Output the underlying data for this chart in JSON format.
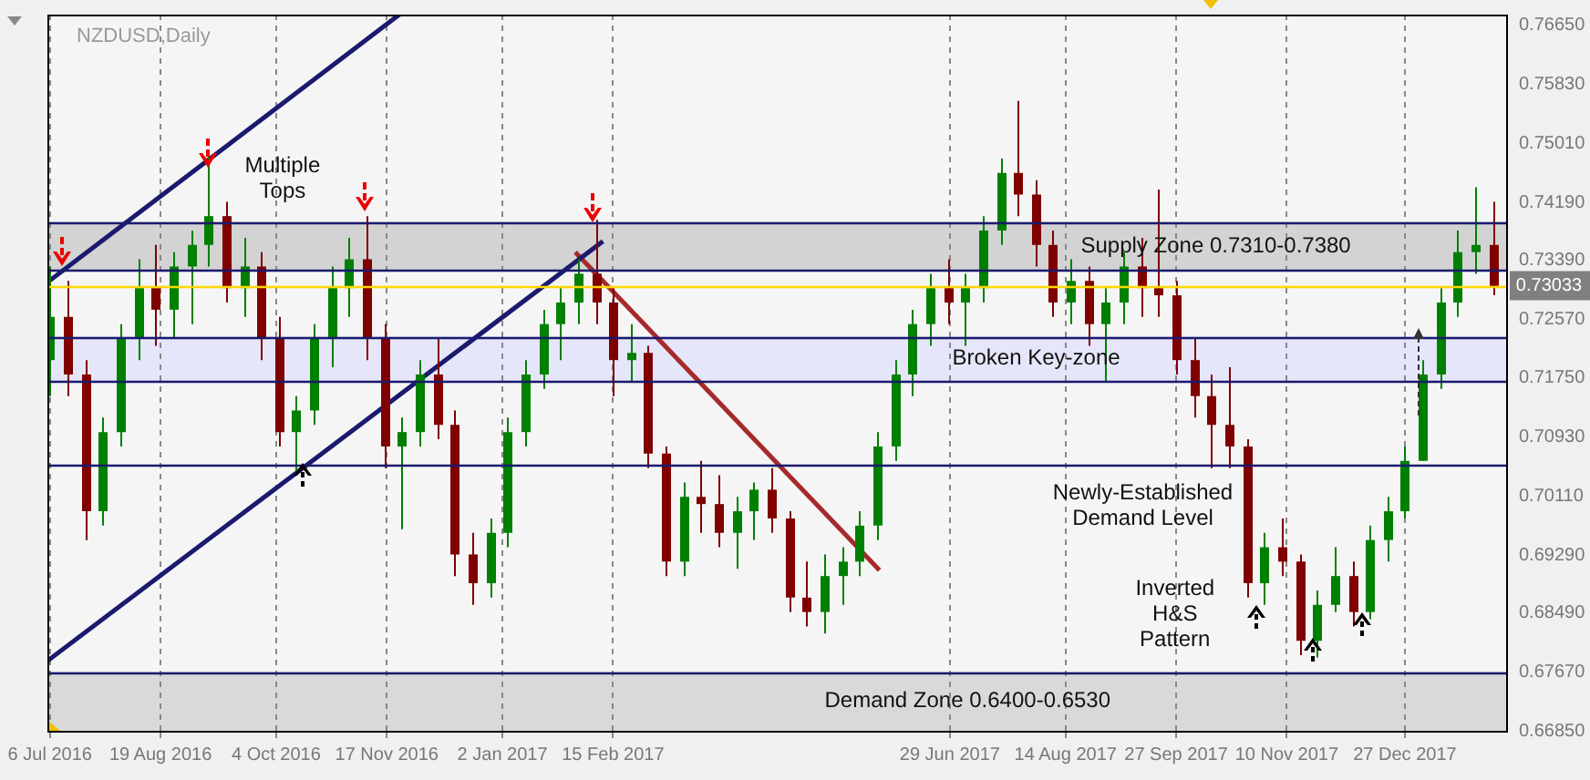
{
  "chart_data": {
    "type": "candlestick",
    "title": "NZDUSD,Daily",
    "x": [
      "2016-07-06",
      "2016-07-13",
      "2016-07-20",
      "2016-07-27",
      "2016-08-03",
      "2016-08-10",
      "2016-08-17",
      "2016-08-24",
      "2016-08-31",
      "2016-09-07",
      "2016-09-14",
      "2016-09-21",
      "2016-09-28",
      "2016-10-05",
      "2016-10-12",
      "2016-10-19",
      "2016-10-26",
      "2016-11-02",
      "2016-11-09",
      "2016-11-16",
      "2016-11-23",
      "2016-11-30",
      "2016-12-07",
      "2016-12-14",
      "2016-12-21",
      "2016-12-28",
      "2017-01-04",
      "2017-01-11",
      "2017-01-18",
      "2017-01-25",
      "2017-02-01",
      "2017-02-08",
      "2017-02-15",
      "2017-02-22",
      "2017-03-01",
      "2017-03-08",
      "2017-03-15",
      "2017-03-22",
      "2017-03-29",
      "2017-04-05",
      "2017-04-12",
      "2017-04-19",
      "2017-04-26",
      "2017-05-03",
      "2017-05-10",
      "2017-05-17",
      "2017-05-24",
      "2017-05-31",
      "2017-06-07",
      "2017-06-14",
      "2017-06-21",
      "2017-06-28",
      "2017-07-05",
      "2017-07-12",
      "2017-07-19",
      "2017-07-26",
      "2017-08-02",
      "2017-08-09",
      "2017-08-16",
      "2017-08-23",
      "2017-08-30",
      "2017-09-06",
      "2017-09-13",
      "2017-09-20",
      "2017-09-27",
      "2017-10-04",
      "2017-10-11",
      "2017-10-18",
      "2017-10-25",
      "2017-11-01",
      "2017-11-08",
      "2017-11-15",
      "2017-11-22",
      "2017-11-29",
      "2017-12-06",
      "2017-12-13",
      "2017-12-20",
      "2017-12-27",
      "2018-01-03",
      "2018-01-10",
      "2018-01-17",
      "2018-01-24",
      "2018-01-31"
    ],
    "ohlc": [
      [
        0.72,
        0.733,
        0.715,
        0.726
      ],
      [
        0.726,
        0.731,
        0.715,
        0.718
      ],
      [
        0.718,
        0.72,
        0.695,
        0.699
      ],
      [
        0.699,
        0.712,
        0.697,
        0.71
      ],
      [
        0.71,
        0.725,
        0.708,
        0.723
      ],
      [
        0.723,
        0.734,
        0.72,
        0.73
      ],
      [
        0.73,
        0.736,
        0.722,
        0.727
      ],
      [
        0.727,
        0.735,
        0.723,
        0.733
      ],
      [
        0.733,
        0.738,
        0.725,
        0.736
      ],
      [
        0.736,
        0.7485,
        0.733,
        0.74
      ],
      [
        0.74,
        0.742,
        0.728,
        0.73
      ],
      [
        0.73,
        0.737,
        0.726,
        0.733
      ],
      [
        0.733,
        0.735,
        0.72,
        0.723
      ],
      [
        0.723,
        0.726,
        0.708,
        0.71
      ],
      [
        0.71,
        0.715,
        0.7045,
        0.713
      ],
      [
        0.713,
        0.725,
        0.711,
        0.723
      ],
      [
        0.723,
        0.733,
        0.719,
        0.73
      ],
      [
        0.73,
        0.737,
        0.726,
        0.734
      ],
      [
        0.734,
        0.74,
        0.72,
        0.723
      ],
      [
        0.723,
        0.725,
        0.705,
        0.708
      ],
      [
        0.708,
        0.712,
        0.6965,
        0.71
      ],
      [
        0.71,
        0.72,
        0.708,
        0.718
      ],
      [
        0.718,
        0.723,
        0.709,
        0.711
      ],
      [
        0.711,
        0.713,
        0.69,
        0.693
      ],
      [
        0.693,
        0.696,
        0.686,
        0.689
      ],
      [
        0.689,
        0.698,
        0.687,
        0.696
      ],
      [
        0.696,
        0.712,
        0.694,
        0.71
      ],
      [
        0.71,
        0.72,
        0.708,
        0.718
      ],
      [
        0.718,
        0.727,
        0.716,
        0.725
      ],
      [
        0.725,
        0.73,
        0.72,
        0.728
      ],
      [
        0.728,
        0.734,
        0.725,
        0.732
      ],
      [
        0.732,
        0.7395,
        0.725,
        0.728
      ],
      [
        0.728,
        0.73,
        0.715,
        0.72
      ],
      [
        0.72,
        0.725,
        0.717,
        0.721
      ],
      [
        0.721,
        0.722,
        0.705,
        0.707
      ],
      [
        0.707,
        0.708,
        0.69,
        0.692
      ],
      [
        0.692,
        0.703,
        0.69,
        0.701
      ],
      [
        0.701,
        0.706,
        0.696,
        0.7
      ],
      [
        0.7,
        0.704,
        0.694,
        0.696
      ],
      [
        0.696,
        0.701,
        0.691,
        0.699
      ],
      [
        0.699,
        0.703,
        0.695,
        0.702
      ],
      [
        0.702,
        0.705,
        0.696,
        0.698
      ],
      [
        0.698,
        0.699,
        0.685,
        0.687
      ],
      [
        0.687,
        0.692,
        0.683,
        0.685
      ],
      [
        0.685,
        0.693,
        0.682,
        0.69
      ],
      [
        0.69,
        0.694,
        0.686,
        0.692
      ],
      [
        0.692,
        0.699,
        0.69,
        0.697
      ],
      [
        0.697,
        0.71,
        0.695,
        0.708
      ],
      [
        0.708,
        0.72,
        0.706,
        0.718
      ],
      [
        0.718,
        0.727,
        0.715,
        0.725
      ],
      [
        0.725,
        0.732,
        0.722,
        0.73
      ],
      [
        0.73,
        0.734,
        0.725,
        0.728
      ],
      [
        0.728,
        0.732,
        0.722,
        0.73
      ],
      [
        0.73,
        0.74,
        0.728,
        0.738
      ],
      [
        0.738,
        0.748,
        0.736,
        0.746
      ],
      [
        0.746,
        0.756,
        0.74,
        0.743
      ],
      [
        0.743,
        0.745,
        0.733,
        0.736
      ],
      [
        0.736,
        0.738,
        0.726,
        0.728
      ],
      [
        0.728,
        0.734,
        0.725,
        0.731
      ],
      [
        0.731,
        0.733,
        0.722,
        0.725
      ],
      [
        0.725,
        0.73,
        0.717,
        0.728
      ],
      [
        0.728,
        0.735,
        0.725,
        0.733
      ],
      [
        0.733,
        0.737,
        0.726,
        0.73
      ],
      [
        0.73,
        0.7437,
        0.726,
        0.729
      ],
      [
        0.729,
        0.731,
        0.718,
        0.72
      ],
      [
        0.72,
        0.723,
        0.712,
        0.715
      ],
      [
        0.715,
        0.718,
        0.705,
        0.711
      ],
      [
        0.711,
        0.719,
        0.705,
        0.708
      ],
      [
        0.708,
        0.709,
        0.687,
        0.689
      ],
      [
        0.689,
        0.696,
        0.686,
        0.694
      ],
      [
        0.694,
        0.698,
        0.69,
        0.692
      ],
      [
        0.692,
        0.693,
        0.679,
        0.681
      ],
      [
        0.681,
        0.688,
        0.6787,
        0.686
      ],
      [
        0.686,
        0.694,
        0.685,
        0.69
      ],
      [
        0.69,
        0.692,
        0.683,
        0.685
      ],
      [
        0.685,
        0.697,
        0.684,
        0.695
      ],
      [
        0.695,
        0.701,
        0.692,
        0.699
      ],
      [
        0.699,
        0.708,
        0.698,
        0.706
      ],
      [
        0.706,
        0.72,
        0.706,
        0.718
      ],
      [
        0.718,
        0.73,
        0.716,
        0.728
      ],
      [
        0.728,
        0.738,
        0.726,
        0.735
      ],
      [
        0.735,
        0.744,
        0.732,
        0.736
      ],
      [
        0.736,
        0.742,
        0.729,
        0.7303
      ]
    ],
    "colors": [
      "#008000",
      "#800000",
      "#800000",
      "#008000",
      "#008000",
      "#008000",
      "#800000",
      "#008000",
      "#008000",
      "#008000",
      "#800000",
      "#008000",
      "#800000",
      "#800000",
      "#008000",
      "#008000",
      "#008000",
      "#008000",
      "#800000",
      "#800000",
      "#008000",
      "#008000",
      "#800000",
      "#800000",
      "#800000",
      "#008000",
      "#008000",
      "#008000",
      "#008000",
      "#008000",
      "#008000",
      "#800000",
      "#800000",
      "#008000",
      "#800000",
      "#800000",
      "#008000",
      "#800000",
      "#800000",
      "#008000",
      "#008000",
      "#800000",
      "#800000",
      "#800000",
      "#008000",
      "#008000",
      "#008000",
      "#008000",
      "#008000",
      "#008000",
      "#008000",
      "#800000",
      "#008000",
      "#008000",
      "#008000",
      "#800000",
      "#800000",
      "#800000",
      "#008000",
      "#800000",
      "#008000",
      "#008000",
      "#800000",
      "#800000",
      "#800000",
      "#800000",
      "#800000",
      "#800000",
      "#800000",
      "#008000",
      "#800000",
      "#800000",
      "#008000",
      "#008000",
      "#800000",
      "#008000",
      "#008000",
      "#008000",
      "#008000",
      "#008000",
      "#008000",
      "#008000",
      "#800000"
    ],
    "series": [
      {
        "type": "line",
        "color": "#1a1a6e",
        "x": [
          "2016-07-05",
          "2016-11-22"
        ],
        "values": [
          0.7308,
          0.768
        ]
      },
      {
        "type": "line",
        "color": "#1a1a6e",
        "x": [
          "2016-07-05",
          "2017-02-11"
        ],
        "values": [
          0.6782,
          0.7365
        ]
      },
      {
        "type": "line",
        "color": "#a52a2a",
        "x": [
          "2017-01-31",
          "2017-06-01"
        ],
        "values": [
          0.735,
          0.6908
        ]
      }
    ],
    "xlim": [
      "2016-07-05",
      "2018-02-06"
    ],
    "xticks": [
      {
        "value": "2016-07-06",
        "label": "6 Jul 2016"
      },
      {
        "value": "2016-08-19",
        "label": "19 Aug 2016"
      },
      {
        "value": "2016-10-04",
        "label": "4 Oct 2016"
      },
      {
        "value": "2016-11-17",
        "label": "17 Nov 2016"
      },
      {
        "value": "2017-01-02",
        "label": "2 Jan 2017"
      },
      {
        "value": "2017-02-15",
        "label": "15 Feb 2017"
      },
      {
        "value": "2017-06-29",
        "label": "29 Jun 2017"
      },
      {
        "value": "2017-08-14",
        "label": "14 Aug 2017"
      },
      {
        "value": "2017-09-27",
        "label": "27 Sep 2017"
      },
      {
        "value": "2017-11-10",
        "label": "10 Nov 2017"
      },
      {
        "value": "2017-12-27",
        "label": "27 Dec 2017"
      }
    ],
    "ylim": [
      0.6685,
      0.768
    ],
    "yticks": [
      {
        "value": 0.6685,
        "label": "0.66850"
      },
      {
        "value": 0.6767,
        "label": "0.67670"
      },
      {
        "value": 0.6849,
        "label": "0.68490"
      },
      {
        "value": 0.6929,
        "label": "0.69290"
      },
      {
        "value": 0.7011,
        "label": "0.70110"
      },
      {
        "value": 0.7093,
        "label": "0.70930"
      },
      {
        "value": 0.7175,
        "label": "0.71750"
      },
      {
        "value": 0.7257,
        "label": "0.72570"
      },
      {
        "value": 0.7339,
        "label": "0.73390"
      },
      {
        "value": 0.7419,
        "label": "0.74190"
      },
      {
        "value": 0.7501,
        "label": "0.75010"
      },
      {
        "value": 0.7583,
        "label": "0.75830"
      },
      {
        "value": 0.7665,
        "label": "0.76650"
      }
    ],
    "grid": "x",
    "bands": [
      {
        "axis": "y",
        "from": 0.7325,
        "to": 0.7392,
        "label": "Supply Zone 0.7310-0.7380",
        "color": "#d3d3d3"
      },
      {
        "axis": "y",
        "from": 0.7171,
        "to": 0.7233,
        "label": "Broken Key-zone",
        "color": "#e6e6fa"
      },
      {
        "axis": "y",
        "from": 0.6685,
        "to": 0.6767,
        "label": "Demand Zone 0.6400-0.6530",
        "color": "#d9d9d9"
      }
    ],
    "ref_lines": [
      {
        "axis": "y",
        "value": 0.7392,
        "color": "#1a1a6e"
      },
      {
        "axis": "y",
        "value": 0.7325,
        "color": "#1a1a6e"
      },
      {
        "axis": "y",
        "value": 0.7233,
        "color": "#1a1a6e"
      },
      {
        "axis": "y",
        "value": 0.7171,
        "color": "#1a1a6e"
      },
      {
        "axis": "y",
        "value": 0.7055,
        "label": "Newly-Established\nDemand Level",
        "color": "#1a1a6e"
      },
      {
        "axis": "y",
        "value": 0.6767,
        "color": "#1a1a6e"
      },
      {
        "axis": "y",
        "value": 0.73033,
        "label": "0.73033",
        "color": "#ffd700"
      }
    ],
    "annotations": [
      "Multiple\nTops",
      "Inverted\nH&S\nPattern"
    ]
  }
}
